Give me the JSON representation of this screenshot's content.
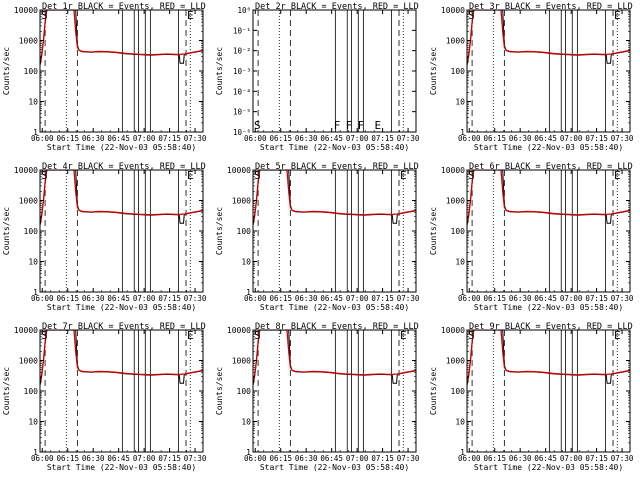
{
  "chart_data": [
    {
      "type": "line",
      "title": "Det 1r BLACK = Events, RED = LLD",
      "ylabel": "Counts/sec",
      "xlabel": "Start Time (22-Nov-03 05:58:40)",
      "has_data": true,
      "letters": [
        "S",
        "E"
      ],
      "letter_times": [
        0.0,
        86.0
      ]
    },
    {
      "type": "line",
      "title": "Det 2r BLACK = Events, RED = LLD",
      "ylabel": "Counts/sec",
      "xlabel": "Start Time (22-Nov-03 05:58:40)",
      "has_data": false,
      "letters": [
        "S",
        "F",
        "F",
        "F",
        "E"
      ],
      "letter_times": [
        0.0,
        47.0,
        54.0,
        61.0,
        71.0
      ]
    },
    {
      "type": "line",
      "title": "Det 3r BLACK = Events, RED = LLD",
      "ylabel": "Counts/sec",
      "xlabel": "Start Time (22-Nov-03 05:58:40)",
      "has_data": true,
      "letters": [
        "S",
        "E"
      ],
      "letter_times": [
        0.0,
        86.0
      ]
    },
    {
      "type": "line",
      "title": "Det 4r BLACK = Events, RED = LLD",
      "ylabel": "Counts/sec",
      "xlabel": "Start Time (22-Nov-03 05:58:40)",
      "has_data": true,
      "letters": [
        "S",
        "E"
      ],
      "letter_times": [
        0.0,
        86.0
      ]
    },
    {
      "type": "line",
      "title": "Det 5r BLACK = Events, RED = LLD",
      "ylabel": "Counts/sec",
      "xlabel": "Start Time (22-Nov-03 05:58:40)",
      "has_data": true,
      "letters": [
        "S",
        "E"
      ],
      "letter_times": [
        0.0,
        86.0
      ]
    },
    {
      "type": "line",
      "title": "Det 6r BLACK = Events, RED = LLD",
      "ylabel": "Counts/sec",
      "xlabel": "Start Time (22-Nov-03 05:58:40)",
      "has_data": true,
      "letters": [
        "S",
        "E"
      ],
      "letter_times": [
        0.0,
        86.0
      ]
    },
    {
      "type": "line",
      "title": "Det 7r BLACK = Events, RED = LLD",
      "ylabel": "Counts/sec",
      "xlabel": "Start Time (22-Nov-03 05:58:40)",
      "has_data": true,
      "letters": [
        "S",
        "E"
      ],
      "letter_times": [
        0.0,
        86.0
      ]
    },
    {
      "type": "line",
      "title": "Det 8r BLACK = Events, RED = LLD",
      "ylabel": "Counts/sec",
      "xlabel": "Start Time (22-Nov-03 05:58:40)",
      "has_data": true,
      "letters": [
        "S",
        "E"
      ],
      "letter_times": [
        0.0,
        86.0
      ]
    },
    {
      "type": "line",
      "title": "Det 9r BLACK = Events, RED = LLD",
      "ylabel": "Counts/sec",
      "xlabel": "Start Time (22-Nov-03 05:58:40)",
      "has_data": true,
      "letters": [
        "S",
        "E"
      ],
      "letter_times": [
        0.0,
        86.0
      ]
    }
  ],
  "shared": {
    "x_start_label": "05:58:40",
    "xlim_minutes": [
      0,
      96
    ],
    "xtick_labels": [
      "06:00",
      "06:15",
      "06:30",
      "06:45",
      "07:00",
      "07:15",
      "07:30"
    ],
    "xtick_minutes": [
      1.33,
      16.33,
      31.33,
      46.33,
      61.33,
      76.33,
      91.33
    ],
    "ylim": [
      1,
      10000
    ],
    "yticks": [
      1,
      10,
      100,
      1000,
      10000
    ],
    "ylim_empty": [
      1e-06,
      1
    ],
    "yticks_empty": [
      "10⁻⁶",
      "10⁻⁵",
      "10⁻⁴",
      "10⁻³",
      "10⁻²",
      "10⁻¹",
      "10⁰"
    ],
    "scale": "log",
    "colors": {
      "events": "#000000",
      "lld": "#cc0000",
      "axes": "#000000"
    },
    "dotted_lines_minutes": [
      15.5,
      88.5
    ],
    "dashed_lines_minutes": [
      3.0,
      22.0,
      86.0
    ],
    "solid_lines_minutes": [
      48.5,
      55.5,
      58.0,
      62.0,
      65.0,
      81.5
    ],
    "series_events": [
      [
        0,
        150
      ],
      [
        1,
        300
      ],
      [
        2,
        900
      ],
      [
        3,
        3500
      ],
      [
        4,
        10000
      ],
      [
        21,
        10000
      ],
      [
        22,
        700
      ],
      [
        23,
        470
      ],
      [
        25,
        430
      ],
      [
        30,
        410
      ],
      [
        35,
        430
      ],
      [
        40,
        420
      ],
      [
        45,
        400
      ],
      [
        50,
        370
      ],
      [
        55,
        350
      ],
      [
        60,
        340
      ],
      [
        65,
        330
      ],
      [
        70,
        340
      ],
      [
        75,
        350
      ],
      [
        80,
        340
      ],
      [
        82,
        340
      ],
      [
        82.5,
        180
      ],
      [
        84.5,
        180
      ],
      [
        85,
        350
      ],
      [
        88,
        380
      ],
      [
        92,
        420
      ],
      [
        96,
        460
      ]
    ],
    "series_lld": [
      [
        0,
        180
      ],
      [
        1,
        350
      ],
      [
        2,
        1000
      ],
      [
        3,
        4000
      ],
      [
        4,
        10000
      ],
      [
        20,
        10000
      ],
      [
        21,
        2000
      ],
      [
        22,
        600
      ],
      [
        23,
        480
      ],
      [
        25,
        440
      ],
      [
        30,
        420
      ],
      [
        35,
        440
      ],
      [
        40,
        430
      ],
      [
        45,
        410
      ],
      [
        50,
        380
      ],
      [
        55,
        360
      ],
      [
        60,
        350
      ],
      [
        65,
        340
      ],
      [
        70,
        350
      ],
      [
        75,
        360
      ],
      [
        80,
        350
      ],
      [
        82,
        350
      ],
      [
        85,
        360
      ],
      [
        88,
        390
      ],
      [
        92,
        430
      ],
      [
        96,
        480
      ]
    ]
  }
}
